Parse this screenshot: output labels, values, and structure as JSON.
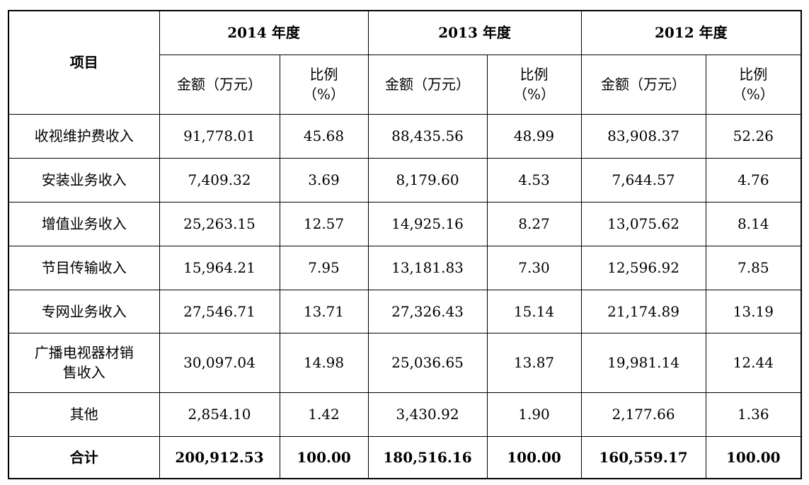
{
  "header": {
    "item": "项目",
    "years": [
      "2014 年度",
      "2013 年度",
      "2012 年度"
    ],
    "amount": "金额（万元）",
    "ratio_line1": "比例",
    "ratio_line2": "（%）"
  },
  "rows": [
    {
      "name": "收视维护费收入",
      "values": [
        "91,778.01",
        "45.68",
        "88,435.56",
        "48.99",
        "83,908.37",
        "52.26"
      ]
    },
    {
      "name": "安装业务收入",
      "values": [
        "7,409.32",
        "3.69",
        "8,179.60",
        "4.53",
        "7,644.57",
        "4.76"
      ]
    },
    {
      "name": "增值业务收入",
      "values": [
        "25,263.15",
        "12.57",
        "14,925.16",
        "8.27",
        "13,075.62",
        "8.14"
      ]
    },
    {
      "name": "节目传输收入",
      "values": [
        "15,964.21",
        "7.95",
        "13,181.83",
        "7.30",
        "12,596.92",
        "7.85"
      ]
    },
    {
      "name": "专网业务收入",
      "values": [
        "27,546.71",
        "13.71",
        "27,326.43",
        "15.14",
        "21,174.89",
        "13.19"
      ]
    },
    {
      "name_line1": "广播电视器材销",
      "name_line2": "售收入",
      "values": [
        "30,097.04",
        "14.98",
        "25,036.65",
        "13.87",
        "19,981.14",
        "12.44"
      ]
    },
    {
      "name": "其他",
      "values": [
        "2,854.10",
        "1.42",
        "3,430.92",
        "1.90",
        "2,177.66",
        "1.36"
      ]
    }
  ],
  "total": {
    "name": "合计",
    "values": [
      "200,912.53",
      "100.00",
      "180,516.16",
      "100.00",
      "160,559.17",
      "100.00"
    ]
  }
}
